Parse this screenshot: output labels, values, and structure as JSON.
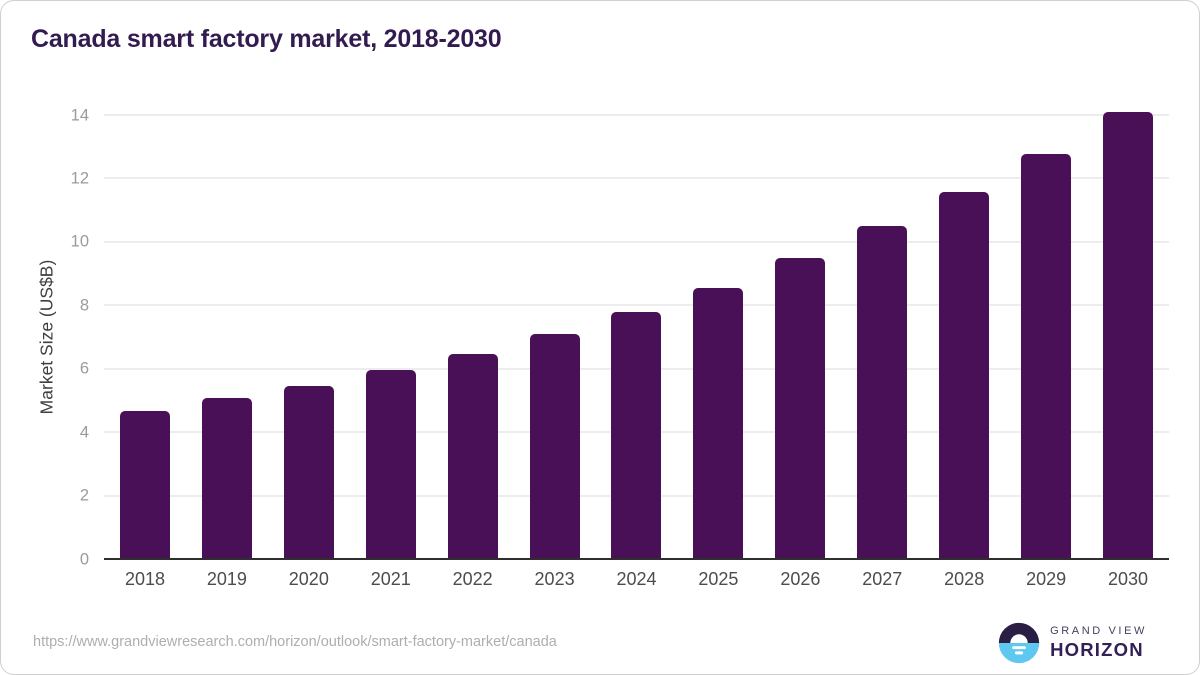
{
  "page": {
    "title": "Canada smart factory market, 2018-2030"
  },
  "chart_data": {
    "type": "bar",
    "title": "Canada smart factory market, 2018-2030",
    "categories": [
      "2018",
      "2019",
      "2020",
      "2021",
      "2022",
      "2023",
      "2024",
      "2025",
      "2026",
      "2027",
      "2028",
      "2029",
      "2030"
    ],
    "values": [
      4.68,
      5.08,
      5.47,
      5.97,
      6.47,
      7.09,
      7.78,
      8.56,
      9.49,
      10.5,
      11.57,
      12.77,
      14.08
    ],
    "xlabel": "",
    "ylabel": "Market Size (US$B)",
    "ylim": [
      0,
      14
    ],
    "yticks": [
      0,
      2,
      4,
      6,
      8,
      10,
      12,
      14
    ],
    "grid": true,
    "legend_position": "none",
    "bar_color": "#4a1057"
  },
  "footer": {
    "source_url": "https://www.grandviewresearch.com/horizon/outlook/smart-factory-market/canada",
    "logo": {
      "brand_line1": "GRAND VIEW",
      "brand_line2": "HORIZON"
    }
  },
  "colors": {
    "title_text": "#321b4f",
    "bar": "#4a1057",
    "x_labels": "#4c4c4c",
    "y_tick_labels": "#9b9b9b",
    "gridline": "#ededed",
    "baseline": "#2e2e2e",
    "url_text": "#aeaeae",
    "logo_dark_half": "#2b1e45",
    "logo_blue_half": "#5fc8f0"
  }
}
